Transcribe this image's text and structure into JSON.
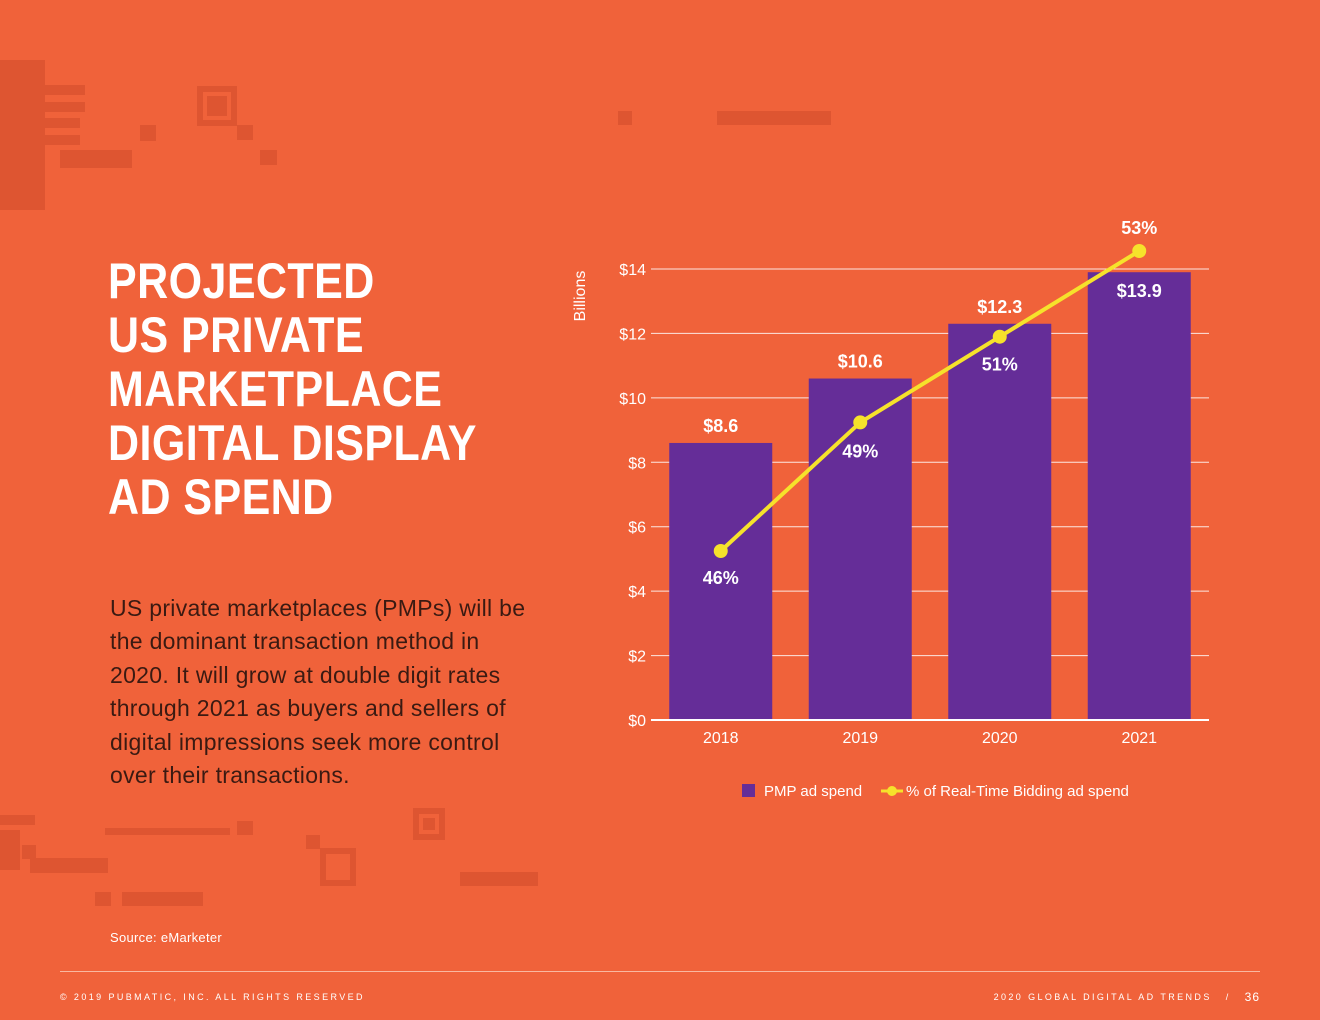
{
  "title_lines": [
    "PROJECTED",
    "US PRIVATE",
    "MARKETPLACE",
    "DIGITAL DISPLAY",
    "AD SPEND"
  ],
  "body_text": "US private marketplaces (PMPs) will be the dominant transaction method in 2020. It will grow at double digit rates through 2021 as buyers and sellers of digital impressions seek more control over their transactions.",
  "source": "Source: eMarketer",
  "footer": {
    "copyright": "© 2019 PUBMATIC, INC. ALL RIGHTS RESERVED",
    "publication": "2020 GLOBAL DIGITAL AD TRENDS",
    "separator": "/",
    "page_number": "36"
  },
  "colors": {
    "background": "#F0623A",
    "bar": "#652D98",
    "line": "#F6E22B",
    "decoration": "#DE5531"
  },
  "chart_data": {
    "type": "bar",
    "categories": [
      "2018",
      "2019",
      "2020",
      "2021"
    ],
    "ylabel": "Billions",
    "ylim": [
      0,
      14
    ],
    "yticks": [
      0,
      2,
      4,
      6,
      8,
      10,
      12,
      14
    ],
    "ytick_labels": [
      "$0",
      "$2",
      "$4",
      "$6",
      "$8",
      "$10",
      "$12",
      "$14"
    ],
    "grid": true,
    "legend_position": "bottom",
    "series": [
      {
        "name": "PMP ad spend",
        "type": "bar",
        "values": [
          8.6,
          10.6,
          12.3,
          13.9
        ],
        "labels": [
          "$8.6",
          "$10.6",
          "$12.3",
          "$13.9"
        ]
      },
      {
        "name": "% of Real-Time Bidding ad spend",
        "type": "line",
        "values": [
          46,
          49,
          51,
          53
        ],
        "labels": [
          "46%",
          "49%",
          "51%",
          "53%"
        ]
      }
    ]
  }
}
